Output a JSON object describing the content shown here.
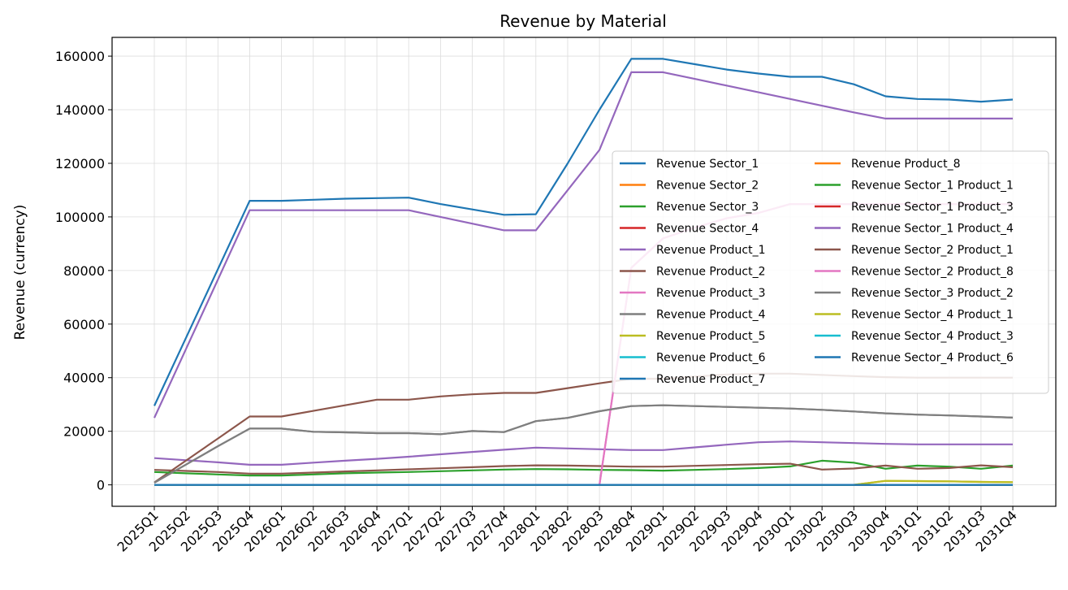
{
  "chart_data": {
    "type": "line",
    "title": "Revenue by Material",
    "xlabel": "",
    "ylabel": "Revenue (currency)",
    "ylim": [
      -8000,
      167000
    ],
    "yticks": [
      0,
      20000,
      40000,
      60000,
      80000,
      100000,
      120000,
      140000,
      160000
    ],
    "grid": true,
    "legend_position": "right",
    "categories": [
      "2025Q1",
      "2025Q2",
      "2025Q3",
      "2025Q4",
      "2026Q1",
      "2026Q2",
      "2026Q3",
      "2026Q4",
      "2027Q1",
      "2027Q2",
      "2027Q3",
      "2027Q4",
      "2028Q1",
      "2028Q2",
      "2028Q3",
      "2028Q4",
      "2029Q1",
      "2029Q2",
      "2029Q3",
      "2029Q4",
      "2030Q1",
      "2030Q2",
      "2030Q3",
      "2030Q4",
      "2031Q1",
      "2031Q2",
      "2031Q3",
      "2031Q4"
    ],
    "series": [
      {
        "name": "Revenue Sector_1",
        "color": "#1f77b4",
        "values": [
          29500,
          55000,
          80500,
          106000,
          106000,
          106400,
          106800,
          107000,
          107200,
          104800,
          102800,
          100800,
          101000,
          120000,
          140000,
          159000,
          159000,
          157000,
          155000,
          153500,
          152300,
          152300,
          149500,
          145000,
          144000,
          143800,
          143000,
          143800
        ]
      },
      {
        "name": "Revenue Sector_2",
        "color": "#ff7f0e",
        "values": [
          0,
          0,
          0,
          0,
          0,
          0,
          0,
          0,
          0,
          0,
          0,
          0,
          0,
          0,
          0,
          0,
          0,
          0,
          0,
          0,
          0,
          0,
          0,
          0,
          0,
          0,
          0,
          0
        ]
      },
      {
        "name": "Revenue Sector_3",
        "color": "#2ca02c",
        "values": [
          0,
          0,
          0,
          0,
          0,
          0,
          0,
          0,
          0,
          0,
          0,
          0,
          0,
          0,
          0,
          0,
          0,
          0,
          0,
          0,
          0,
          0,
          0,
          0,
          0,
          0,
          0,
          0
        ]
      },
      {
        "name": "Revenue Sector_4",
        "color": "#d62728",
        "values": [
          0,
          0,
          0,
          0,
          0,
          0,
          0,
          0,
          0,
          0,
          0,
          0,
          0,
          0,
          0,
          0,
          0,
          0,
          0,
          0,
          0,
          0,
          0,
          0,
          0,
          0,
          0,
          0
        ]
      },
      {
        "name": "Revenue Product_1",
        "color": "#9467bd",
        "values": [
          10000,
          9200,
          8400,
          7500,
          7500,
          8300,
          9000,
          9700,
          10500,
          11400,
          12300,
          13100,
          13900,
          13600,
          13300,
          13000,
          13000,
          14000,
          15000,
          15900,
          16200,
          15900,
          15600,
          15300,
          15100,
          15100,
          15100,
          15100
        ]
      },
      {
        "name": "Revenue Product_2",
        "color": "#8c564b",
        "values": [
          900,
          9100,
          17300,
          25500,
          25500,
          27600,
          29700,
          31800,
          31800,
          33000,
          33800,
          34300,
          34300,
          36100,
          37900,
          39600,
          39600,
          40400,
          41200,
          41500,
          41500,
          41000,
          40600,
          40200,
          40000,
          40000,
          40000,
          40000
        ]
      },
      {
        "name": "Revenue Product_3",
        "color": "#e377c2",
        "values": [
          0,
          0,
          0,
          0,
          0,
          0,
          0,
          0,
          0,
          0,
          0,
          0,
          0,
          0,
          0,
          81000,
          92000,
          96000,
          99500,
          101500,
          104800,
          104800,
          104800,
          104800,
          104800,
          104800,
          104800,
          104800
        ]
      },
      {
        "name": "Revenue Product_4",
        "color": "#7f7f7f",
        "values": [
          800,
          7600,
          14400,
          21000,
          21000,
          19800,
          19600,
          19300,
          19300,
          18900,
          20100,
          19700,
          23800,
          25000,
          27500,
          29400,
          29700,
          29400,
          29100,
          28800,
          28500,
          28000,
          27400,
          26700,
          26200,
          25900,
          25500,
          25100
        ]
      },
      {
        "name": "Revenue Product_5",
        "color": "#bcbd22",
        "values": [
          0,
          0,
          0,
          0,
          0,
          0,
          0,
          0,
          0,
          0,
          0,
          0,
          0,
          0,
          0,
          0,
          0,
          0,
          0,
          0,
          0,
          0,
          0,
          1500,
          1400,
          1300,
          1100,
          1000
        ]
      },
      {
        "name": "Revenue Product_6",
        "color": "#17becf",
        "values": [
          0,
          0,
          0,
          0,
          0,
          0,
          0,
          0,
          0,
          0,
          0,
          0,
          0,
          0,
          0,
          0,
          0,
          0,
          0,
          0,
          0,
          0,
          0,
          0,
          0,
          0,
          0,
          0
        ]
      },
      {
        "name": "Revenue Product_7",
        "color": "#1f77b4",
        "values": [
          0,
          0,
          0,
          0,
          0,
          0,
          0,
          0,
          0,
          0,
          0,
          0,
          0,
          0,
          0,
          0,
          0,
          0,
          0,
          0,
          0,
          0,
          0,
          0,
          0,
          0,
          0,
          0
        ]
      },
      {
        "name": "Revenue Product_8",
        "color": "#ff7f0e",
        "values": [
          0,
          0,
          0,
          0,
          0,
          0,
          0,
          0,
          0,
          0,
          0,
          0,
          0,
          0,
          0,
          0,
          0,
          0,
          0,
          0,
          0,
          0,
          0,
          0,
          0,
          0,
          0,
          0
        ]
      },
      {
        "name": "Revenue Sector_1 Product_1",
        "color": "#2ca02c",
        "values": [
          4800,
          4300,
          3900,
          3500,
          3500,
          3900,
          4300,
          4600,
          4800,
          5100,
          5400,
          5700,
          5900,
          5800,
          5600,
          5500,
          5300,
          5600,
          5900,
          6300,
          6900,
          9000,
          8300,
          6000,
          7200,
          6800,
          6000,
          7200
        ]
      },
      {
        "name": "Revenue Sector_1 Product_3",
        "color": "#d62728",
        "values": [
          0,
          0,
          0,
          0,
          0,
          0,
          0,
          0,
          0,
          0,
          0,
          0,
          0,
          0,
          0,
          0,
          0,
          0,
          0,
          0,
          0,
          0,
          0,
          0,
          0,
          0,
          0,
          0
        ]
      },
      {
        "name": "Revenue Sector_1 Product_4",
        "color": "#9467bd",
        "values": [
          25000,
          50800,
          76600,
          102500,
          102500,
          102500,
          102500,
          102500,
          102500,
          100000,
          97500,
          95000,
          95000,
          110000,
          125000,
          154000,
          154000,
          151500,
          149000,
          146500,
          144000,
          141500,
          139000,
          136700,
          136700,
          136700,
          136700,
          136700
        ]
      },
      {
        "name": "Revenue Sector_2 Product_1",
        "color": "#8c564b",
        "values": [
          5600,
          5200,
          4800,
          4200,
          4200,
          4600,
          5000,
          5400,
          5800,
          6200,
          6600,
          7000,
          7300,
          7200,
          7000,
          6800,
          6800,
          7100,
          7400,
          7700,
          7900,
          5700,
          6100,
          7200,
          6000,
          6300,
          7300,
          6600
        ]
      },
      {
        "name": "Revenue Sector_2 Product_8",
        "color": "#e377c2",
        "values": [
          0,
          0,
          0,
          0,
          0,
          0,
          0,
          0,
          0,
          0,
          0,
          0,
          0,
          0,
          0,
          81000,
          92000,
          96000,
          99500,
          101500,
          104800,
          104800,
          104800,
          104800,
          104800,
          104800,
          104800,
          104800
        ]
      },
      {
        "name": "Revenue Sector_3 Product_2",
        "color": "#7f7f7f",
        "values": [
          800,
          7600,
          14400,
          21000,
          21000,
          19800,
          19600,
          19300,
          19300,
          18900,
          20100,
          19700,
          23800,
          25000,
          27500,
          29400,
          29700,
          29400,
          29100,
          28800,
          28500,
          28000,
          27400,
          26700,
          26200,
          25900,
          25500,
          25100
        ]
      },
      {
        "name": "Revenue Sector_4 Product_1",
        "color": "#bcbd22",
        "values": [
          0,
          0,
          0,
          0,
          0,
          0,
          0,
          0,
          0,
          0,
          0,
          0,
          0,
          0,
          0,
          0,
          0,
          0,
          0,
          0,
          0,
          0,
          0,
          1500,
          1400,
          1300,
          1100,
          1000
        ]
      },
      {
        "name": "Revenue Sector_4 Product_3",
        "color": "#17becf",
        "values": [
          0,
          0,
          0,
          0,
          0,
          0,
          0,
          0,
          0,
          0,
          0,
          0,
          0,
          0,
          0,
          0,
          0,
          0,
          0,
          0,
          0,
          0,
          0,
          0,
          0,
          0,
          0,
          0
        ]
      },
      {
        "name": "Revenue Sector_4 Product_6",
        "color": "#1f77b4",
        "values": [
          0,
          0,
          0,
          0,
          0,
          0,
          0,
          0,
          0,
          0,
          0,
          0,
          0,
          0,
          0,
          0,
          0,
          0,
          0,
          0,
          0,
          0,
          0,
          0,
          0,
          0,
          0,
          0
        ]
      }
    ]
  }
}
